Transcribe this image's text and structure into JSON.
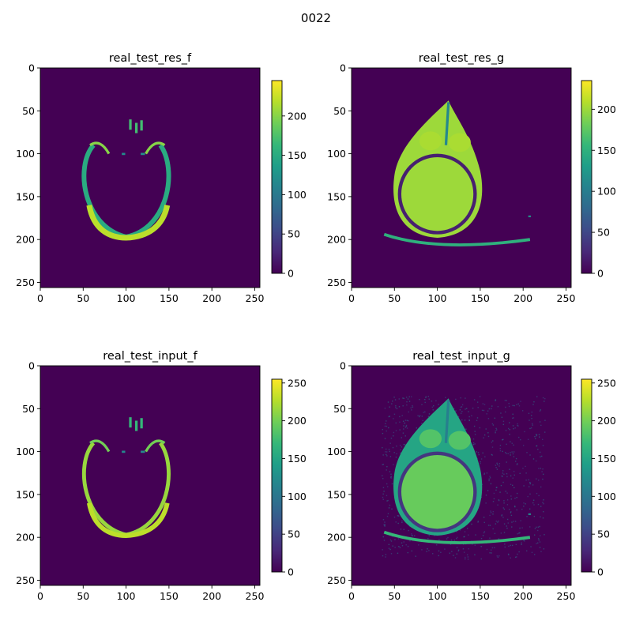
{
  "figure": {
    "suptitle": "0022"
  },
  "colormap": {
    "name": "viridis",
    "stops": [
      "#440154",
      "#482878",
      "#3e4a89",
      "#31688e",
      "#26828e",
      "#1f9e89",
      "#35b779",
      "#6ece58",
      "#b5de2b",
      "#fde725"
    ]
  },
  "chart_data": [
    {
      "type": "heatmap",
      "title": "real_test_res_f",
      "image_size": [
        256,
        256
      ],
      "xlim": [
        0,
        256
      ],
      "ylim": [
        256,
        0
      ],
      "xticks": [
        0,
        50,
        100,
        150,
        200,
        250
      ],
      "yticks": [
        0,
        50,
        100,
        150,
        200,
        250
      ],
      "colorbar": {
        "range": [
          0,
          245
        ],
        "ticks": [
          0,
          50,
          100,
          150,
          200
        ]
      },
      "content": "skull-ring"
    },
    {
      "type": "heatmap",
      "title": "real_test_res_g",
      "image_size": [
        256,
        256
      ],
      "xlim": [
        0,
        256
      ],
      "ylim": [
        256,
        0
      ],
      "xticks": [
        0,
        50,
        100,
        150,
        200,
        250
      ],
      "yticks": [
        0,
        50,
        100,
        150,
        200,
        250
      ],
      "colorbar": {
        "range": [
          0,
          235
        ],
        "ticks": [
          0,
          50,
          100,
          150,
          200
        ]
      },
      "content": "head-solid"
    },
    {
      "type": "heatmap",
      "title": "real_test_input_f",
      "image_size": [
        256,
        256
      ],
      "xlim": [
        0,
        256
      ],
      "ylim": [
        256,
        0
      ],
      "xticks": [
        0,
        50,
        100,
        150,
        200,
        250
      ],
      "yticks": [
        0,
        50,
        100,
        150,
        200,
        250
      ],
      "colorbar": {
        "range": [
          0,
          255
        ],
        "ticks": [
          0,
          50,
          100,
          150,
          200,
          250
        ]
      },
      "content": "skull-ring-thin"
    },
    {
      "type": "heatmap",
      "title": "real_test_input_g",
      "image_size": [
        256,
        256
      ],
      "xlim": [
        0,
        256
      ],
      "ylim": [
        256,
        0
      ],
      "xticks": [
        0,
        50,
        100,
        150,
        200,
        250
      ],
      "yticks": [
        0,
        50,
        100,
        150,
        200,
        250
      ],
      "colorbar": {
        "range": [
          0,
          255
        ],
        "ticks": [
          0,
          50,
          100,
          150,
          200,
          250
        ]
      },
      "content": "head-noisy"
    }
  ]
}
